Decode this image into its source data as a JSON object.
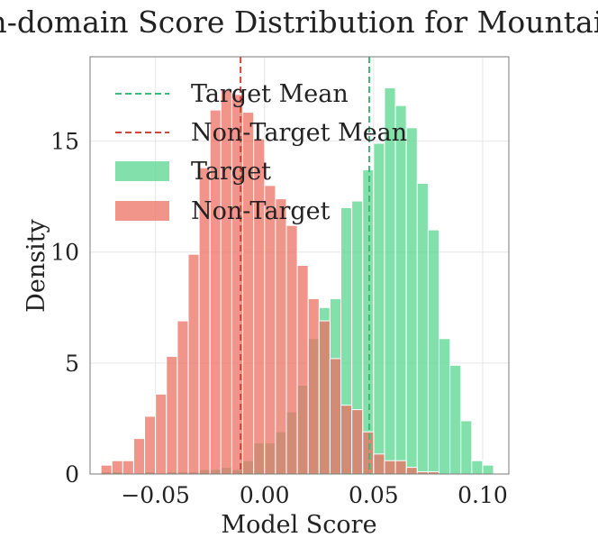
{
  "chart_data": {
    "type": "bar",
    "title": "In-domain Score Distribution for Mountain",
    "xlabel": "Model Score",
    "ylabel": "Density",
    "xlim": [
      -0.08,
      0.112
    ],
    "ylim": [
      0,
      18.8
    ],
    "xticks": [
      -0.05,
      0.0,
      0.05,
      0.1
    ],
    "xtick_labels": [
      "−0.05",
      "0.00",
      "0.05",
      "0.10"
    ],
    "yticks": [
      0,
      5,
      10,
      15
    ],
    "ytick_labels": [
      "0",
      "5",
      "10",
      "15"
    ],
    "grid": true,
    "legend_position": "top-left",
    "bin_width": 0.005,
    "series": [
      {
        "name": "Target",
        "color": "#58d68d",
        "bins": [
          {
            "x0": -0.075,
            "y": 0.1
          },
          {
            "x0": -0.07,
            "y": 0.1
          },
          {
            "x0": -0.065,
            "y": 0.0
          },
          {
            "x0": -0.06,
            "y": 0.0
          },
          {
            "x0": -0.055,
            "y": 0.1
          },
          {
            "x0": -0.05,
            "y": 0.0
          },
          {
            "x0": -0.045,
            "y": 0.1
          },
          {
            "x0": -0.04,
            "y": 0.1
          },
          {
            "x0": -0.035,
            "y": 0.1
          },
          {
            "x0": -0.03,
            "y": 0.2
          },
          {
            "x0": -0.025,
            "y": 0.2
          },
          {
            "x0": -0.02,
            "y": 0.3
          },
          {
            "x0": -0.015,
            "y": 0.2
          },
          {
            "x0": -0.01,
            "y": 0.6
          },
          {
            "x0": -0.005,
            "y": 1.4
          },
          {
            "x0": 0.0,
            "y": 1.4
          },
          {
            "x0": 0.005,
            "y": 1.9
          },
          {
            "x0": 0.01,
            "y": 2.8
          },
          {
            "x0": 0.015,
            "y": 4.0
          },
          {
            "x0": 0.02,
            "y": 6.1
          },
          {
            "x0": 0.025,
            "y": 7.5
          },
          {
            "x0": 0.03,
            "y": 7.9
          },
          {
            "x0": 0.035,
            "y": 12.0
          },
          {
            "x0": 0.04,
            "y": 12.3
          },
          {
            "x0": 0.045,
            "y": 13.7
          },
          {
            "x0": 0.05,
            "y": 14.9
          },
          {
            "x0": 0.055,
            "y": 17.4
          },
          {
            "x0": 0.06,
            "y": 16.6
          },
          {
            "x0": 0.065,
            "y": 15.6
          },
          {
            "x0": 0.07,
            "y": 13.1
          },
          {
            "x0": 0.075,
            "y": 11.0
          },
          {
            "x0": 0.08,
            "y": 6.1
          },
          {
            "x0": 0.085,
            "y": 4.9
          },
          {
            "x0": 0.09,
            "y": 2.4
          },
          {
            "x0": 0.095,
            "y": 0.6
          },
          {
            "x0": 0.1,
            "y": 0.4
          }
        ]
      },
      {
        "name": "Non-Target",
        "color": "#ec7063",
        "bins": [
          {
            "x0": -0.075,
            "y": 0.4
          },
          {
            "x0": -0.07,
            "y": 0.6
          },
          {
            "x0": -0.065,
            "y": 0.6
          },
          {
            "x0": -0.06,
            "y": 1.6
          },
          {
            "x0": -0.055,
            "y": 2.6
          },
          {
            "x0": -0.05,
            "y": 3.6
          },
          {
            "x0": -0.045,
            "y": 5.3
          },
          {
            "x0": -0.04,
            "y": 6.9
          },
          {
            "x0": -0.035,
            "y": 9.9
          },
          {
            "x0": -0.03,
            "y": 13.8
          },
          {
            "x0": -0.025,
            "y": 16.4
          },
          {
            "x0": -0.02,
            "y": 17.3
          },
          {
            "x0": -0.015,
            "y": 17.1
          },
          {
            "x0": -0.01,
            "y": 16.3
          },
          {
            "x0": -0.005,
            "y": 15.1
          },
          {
            "x0": 0.0,
            "y": 13.0
          },
          {
            "x0": 0.005,
            "y": 12.4
          },
          {
            "x0": 0.01,
            "y": 11.2
          },
          {
            "x0": 0.015,
            "y": 9.4
          },
          {
            "x0": 0.02,
            "y": 7.9
          },
          {
            "x0": 0.025,
            "y": 6.9
          },
          {
            "x0": 0.03,
            "y": 5.2
          },
          {
            "x0": 0.035,
            "y": 3.1
          },
          {
            "x0": 0.04,
            "y": 2.9
          },
          {
            "x0": 0.045,
            "y": 1.9
          },
          {
            "x0": 0.05,
            "y": 0.9
          },
          {
            "x0": 0.055,
            "y": 0.6
          },
          {
            "x0": 0.06,
            "y": 0.6
          },
          {
            "x0": 0.065,
            "y": 0.3
          },
          {
            "x0": 0.07,
            "y": 0.1
          },
          {
            "x0": 0.075,
            "y": 0.1
          }
        ]
      }
    ],
    "mean_lines": [
      {
        "name": "Target Mean",
        "x": 0.048,
        "color": "#3dbb78"
      },
      {
        "name": "Non-Target Mean",
        "x": -0.011,
        "color": "#d0463a"
      }
    ],
    "legend": [
      "Target Mean",
      "Non-Target Mean",
      "Target",
      "Non-Target"
    ]
  }
}
